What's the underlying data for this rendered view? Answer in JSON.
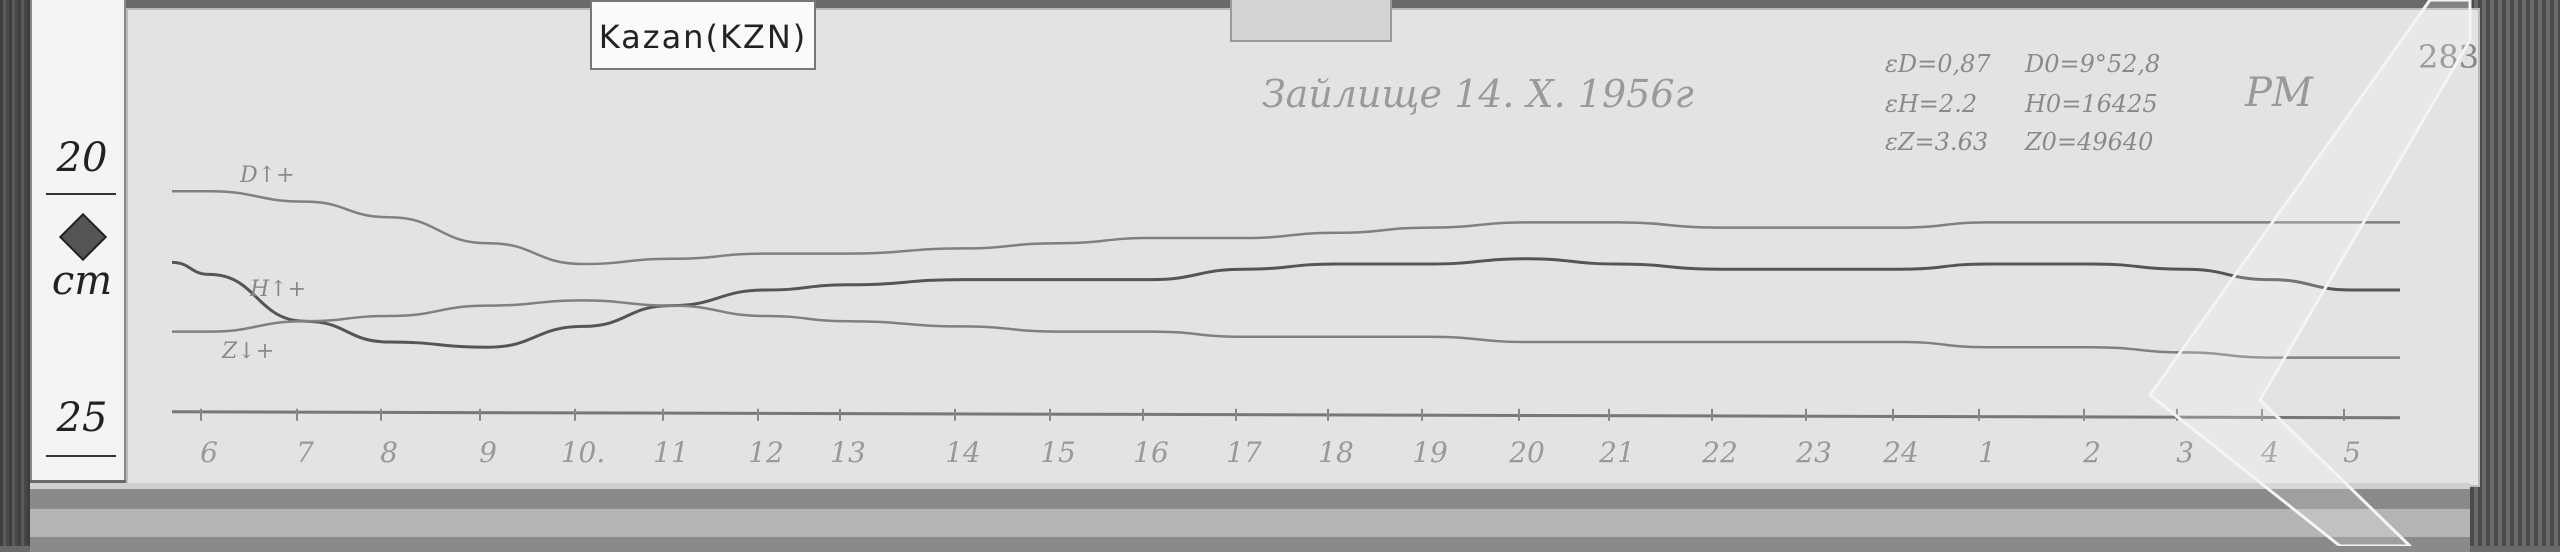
{
  "station_label": "Kazan(KZN)",
  "title_note": "Зайлище 14. X. 1956г",
  "sheet_number": "283",
  "initials": "РМ",
  "scale_values": [
    "εD=0,87",
    "D0=9°52,8",
    "εH=2.2",
    "H0=16425",
    "εZ=3.63",
    "Z0=49640"
  ],
  "ruler": {
    "top_label": "20",
    "unit": "cm",
    "bottom_label": "25"
  },
  "colors": {
    "paper": "#e3e3e3",
    "trace": "#6e6e6e",
    "ink": "#9a9a9a"
  },
  "chart_data": {
    "type": "line",
    "title": "",
    "xlabel": "",
    "ylabel": "cm",
    "y_axis_inverted": true,
    "ylim": [
      20,
      25
    ],
    "categories": [
      "6",
      "7",
      "8",
      "9",
      "10.",
      "11",
      "12",
      "13",
      "14",
      "15",
      "16",
      "17",
      "18",
      "19",
      "20",
      "21",
      "22",
      "23",
      "24",
      "1",
      "2",
      "3",
      "4",
      "5"
    ],
    "baseline": 24.9,
    "series": [
      {
        "name": "D↑+",
        "values": [
          20.6,
          20.8,
          21.1,
          21.6,
          22.0,
          21.9,
          21.8,
          21.8,
          21.7,
          21.6,
          21.5,
          21.5,
          21.4,
          21.3,
          21.2,
          21.2,
          21.3,
          21.3,
          21.3,
          21.2,
          21.2,
          21.2,
          21.2,
          21.2
        ]
      },
      {
        "name": "H↑+",
        "values": [
          22.2,
          23.1,
          23.5,
          23.6,
          23.2,
          22.8,
          22.5,
          22.4,
          22.3,
          22.3,
          22.3,
          22.1,
          22.0,
          22.0,
          21.9,
          22.0,
          22.1,
          22.1,
          22.1,
          22.0,
          22.0,
          22.1,
          22.3,
          22.5
        ]
      },
      {
        "name": "Z↓+",
        "values": [
          23.3,
          23.1,
          23.0,
          22.8,
          22.7,
          22.8,
          23.0,
          23.1,
          23.2,
          23.3,
          23.3,
          23.4,
          23.4,
          23.4,
          23.5,
          23.5,
          23.5,
          23.5,
          23.5,
          23.6,
          23.6,
          23.7,
          23.8,
          23.8
        ]
      }
    ],
    "grid": false,
    "legend": "inline"
  }
}
